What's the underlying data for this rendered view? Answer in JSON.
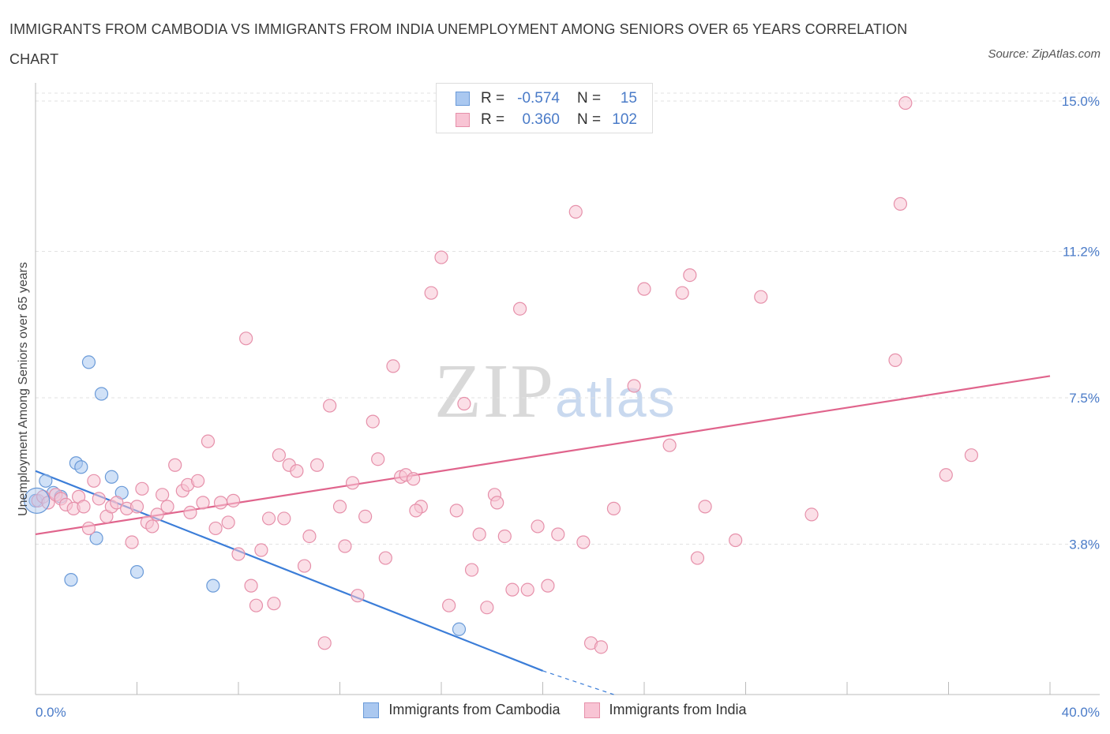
{
  "title": "IMMIGRANTS FROM CAMBODIA VS IMMIGRANTS FROM INDIA UNEMPLOYMENT AMONG SENIORS OVER 65 YEARS CORRELATION CHART",
  "source": "Source: ZipAtlas.com",
  "watermark": {
    "main": "ZIP",
    "sub": "atlas"
  },
  "legend": {
    "rows": [
      {
        "r_label": "R =",
        "r_value": "-0.574",
        "n_label": "N =",
        "n_value": "15",
        "color": "#aac8f0",
        "border": "#6a9ad8"
      },
      {
        "r_label": "R =",
        "r_value": "0.360",
        "n_label": "N =",
        "n_value": "102",
        "color": "#f8c4d4",
        "border": "#e690aa"
      }
    ]
  },
  "bottom_legend": [
    {
      "label": "Immigrants from Cambodia",
      "color": "#aac8f0",
      "border": "#6a9ad8"
    },
    {
      "label": "Immigrants from India",
      "color": "#f8c4d4",
      "border": "#e690aa"
    }
  ],
  "chart_data": {
    "type": "scatter",
    "title": "IMMIGRANTS FROM CAMBODIA VS IMMIGRANTS FROM INDIA UNEMPLOYMENT AMONG SENIORS OVER 65 YEARS CORRELATION CHART",
    "xlabel": "",
    "ylabel": "Unemployment Among Seniors over 65 years",
    "xlim": [
      0,
      40
    ],
    "ylim": [
      0,
      15.2
    ],
    "x_tick_labels": [
      "0.0%",
      "40.0%"
    ],
    "y_ticks": [
      3.8,
      7.5,
      11.2,
      15.0
    ],
    "y_tick_labels": [
      "3.8%",
      "7.5%",
      "11.2%",
      "15.0%"
    ],
    "grid": true,
    "series": [
      {
        "name": "Immigrants from Cambodia",
        "color": "#aac8f0",
        "stroke": "#6a9ad8",
        "line_color": "#3b7dd8",
        "trend": {
          "x": [
            0,
            20
          ],
          "y": [
            5.65,
            0.6
          ],
          "dashed_to": [
            22.8,
            0.0
          ]
        },
        "points": [
          [
            0.0,
            4.9
          ],
          [
            0.4,
            5.4
          ],
          [
            0.7,
            5.1
          ],
          [
            1.4,
            2.9
          ],
          [
            1.6,
            5.85
          ],
          [
            1.8,
            5.75
          ],
          [
            2.1,
            8.4
          ],
          [
            2.4,
            3.95
          ],
          [
            2.6,
            7.6
          ],
          [
            3.0,
            5.5
          ],
          [
            3.4,
            5.1
          ],
          [
            4.0,
            3.1
          ],
          [
            7.0,
            2.75
          ],
          [
            1.0,
            5.0
          ],
          [
            16.7,
            1.65
          ]
        ]
      },
      {
        "name": "Immigrants from India",
        "color": "#f8c4d4",
        "stroke": "#e690aa",
        "line_color": "#e0648c",
        "trend": {
          "x": [
            0,
            40
          ],
          "y": [
            4.05,
            8.05
          ]
        },
        "points": [
          [
            0.1,
            4.9
          ],
          [
            0.3,
            5.0
          ],
          [
            0.5,
            4.85
          ],
          [
            0.8,
            5.05
          ],
          [
            1.0,
            4.95
          ],
          [
            1.2,
            4.8
          ],
          [
            1.5,
            4.7
          ],
          [
            1.7,
            5.0
          ],
          [
            1.9,
            4.75
          ],
          [
            2.1,
            4.2
          ],
          [
            2.3,
            5.4
          ],
          [
            2.5,
            4.95
          ],
          [
            2.8,
            4.5
          ],
          [
            3.0,
            4.75
          ],
          [
            3.2,
            4.85
          ],
          [
            3.6,
            4.7
          ],
          [
            3.8,
            3.85
          ],
          [
            4.0,
            4.75
          ],
          [
            4.2,
            5.2
          ],
          [
            4.4,
            4.35
          ],
          [
            4.6,
            4.25
          ],
          [
            4.8,
            4.55
          ],
          [
            5.0,
            5.05
          ],
          [
            5.2,
            4.75
          ],
          [
            5.5,
            5.8
          ],
          [
            5.8,
            5.15
          ],
          [
            6.0,
            5.3
          ],
          [
            6.1,
            4.6
          ],
          [
            6.4,
            5.4
          ],
          [
            6.6,
            4.85
          ],
          [
            6.8,
            6.4
          ],
          [
            7.1,
            4.2
          ],
          [
            7.3,
            4.85
          ],
          [
            7.6,
            4.35
          ],
          [
            7.8,
            4.9
          ],
          [
            8.0,
            3.55
          ],
          [
            8.3,
            9.0
          ],
          [
            8.5,
            2.75
          ],
          [
            8.7,
            2.25
          ],
          [
            8.9,
            3.65
          ],
          [
            9.2,
            4.45
          ],
          [
            9.4,
            2.3
          ],
          [
            9.6,
            6.05
          ],
          [
            9.8,
            4.45
          ],
          [
            10.0,
            5.8
          ],
          [
            10.3,
            5.65
          ],
          [
            10.6,
            3.25
          ],
          [
            10.8,
            4.0
          ],
          [
            11.1,
            5.8
          ],
          [
            11.4,
            1.3
          ],
          [
            11.6,
            7.3
          ],
          [
            12.0,
            4.75
          ],
          [
            12.2,
            3.75
          ],
          [
            12.5,
            5.35
          ],
          [
            12.7,
            2.5
          ],
          [
            13.0,
            4.5
          ],
          [
            13.3,
            6.9
          ],
          [
            13.5,
            5.95
          ],
          [
            13.8,
            3.45
          ],
          [
            14.1,
            8.3
          ],
          [
            14.4,
            5.5
          ],
          [
            14.6,
            5.55
          ],
          [
            14.9,
            5.45
          ],
          [
            15.2,
            4.75
          ],
          [
            15.6,
            10.15
          ],
          [
            16.0,
            11.05
          ],
          [
            16.3,
            2.25
          ],
          [
            16.6,
            4.65
          ],
          [
            16.9,
            7.35
          ],
          [
            17.2,
            3.15
          ],
          [
            17.5,
            4.05
          ],
          [
            17.8,
            2.2
          ],
          [
            18.1,
            5.05
          ],
          [
            18.2,
            4.85
          ],
          [
            18.5,
            4.0
          ],
          [
            18.8,
            2.65
          ],
          [
            19.1,
            9.75
          ],
          [
            19.4,
            2.65
          ],
          [
            19.8,
            4.25
          ],
          [
            20.2,
            2.75
          ],
          [
            20.6,
            4.05
          ],
          [
            21.3,
            12.2
          ],
          [
            21.6,
            3.85
          ],
          [
            21.9,
            1.3
          ],
          [
            22.3,
            1.2
          ],
          [
            22.8,
            4.7
          ],
          [
            23.6,
            7.8
          ],
          [
            24.0,
            10.25
          ],
          [
            25.0,
            6.3
          ],
          [
            25.5,
            10.15
          ],
          [
            25.8,
            10.6
          ],
          [
            26.1,
            3.45
          ],
          [
            26.4,
            4.75
          ],
          [
            27.6,
            3.9
          ],
          [
            28.6,
            10.05
          ],
          [
            30.6,
            4.55
          ],
          [
            33.9,
            8.45
          ],
          [
            34.1,
            12.4
          ],
          [
            34.3,
            14.95
          ],
          [
            35.9,
            5.55
          ],
          [
            36.9,
            6.05
          ],
          [
            15.0,
            4.65
          ]
        ]
      }
    ]
  }
}
